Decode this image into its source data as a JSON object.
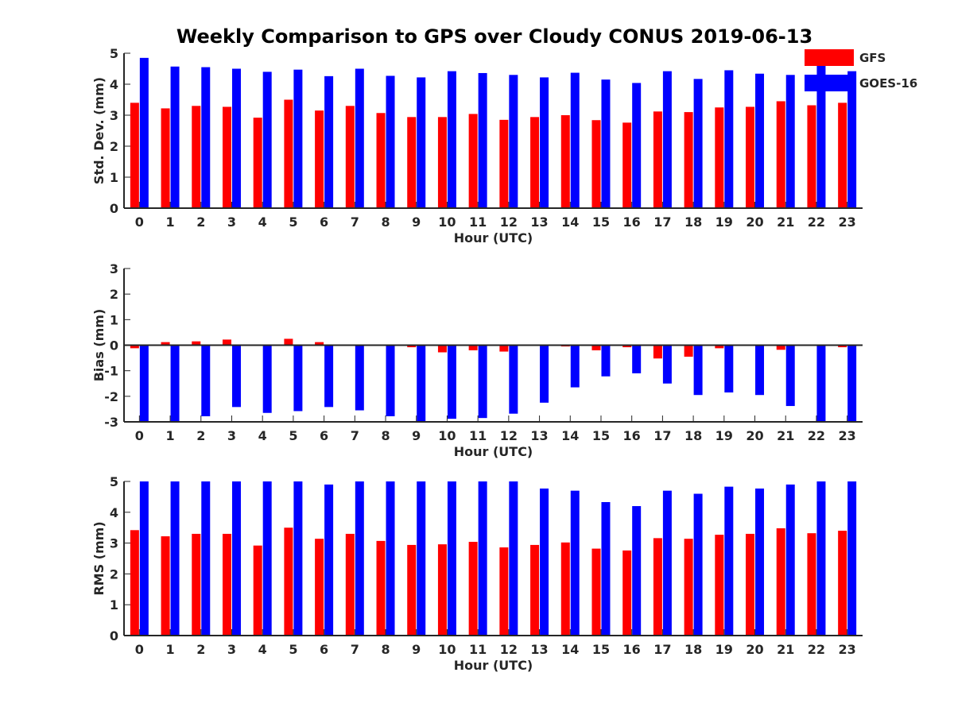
{
  "title": "Weekly Comparison to GPS over Cloudy CONUS 2019-06-13",
  "colors": {
    "GFS": "#ff0000",
    "GOES-16": "#0000ff"
  },
  "legend": {
    "placement": "top-right",
    "items": [
      "GFS",
      "GOES-16"
    ]
  },
  "chart_data": [
    {
      "type": "bar",
      "ylabel": "Std. Dev. (mm)",
      "xlabel": "Hour (UTC)",
      "ylim": [
        0,
        5
      ],
      "yticks": [
        0,
        1,
        2,
        3,
        4,
        5
      ],
      "categories": [
        "0",
        "1",
        "2",
        "3",
        "4",
        "5",
        "6",
        "7",
        "8",
        "9",
        "10",
        "11",
        "12",
        "13",
        "14",
        "15",
        "16",
        "17",
        "18",
        "19",
        "20",
        "21",
        "22",
        "23"
      ],
      "series": [
        {
          "name": "GFS",
          "values": [
            3.4,
            3.22,
            3.3,
            3.27,
            2.92,
            3.5,
            3.15,
            3.3,
            3.07,
            2.94,
            2.94,
            3.04,
            2.85,
            2.94,
            3.0,
            2.84,
            2.76,
            3.12,
            3.1,
            3.25,
            3.27,
            3.45,
            3.32,
            3.4
          ]
        },
        {
          "name": "GOES-16",
          "values": [
            4.85,
            4.57,
            4.55,
            4.5,
            4.4,
            4.47,
            4.26,
            4.5,
            4.27,
            4.22,
            4.42,
            4.36,
            4.3,
            4.22,
            4.37,
            4.15,
            4.04,
            4.42,
            4.17,
            4.45,
            4.34,
            4.3,
            4.62,
            4.42
          ]
        }
      ]
    },
    {
      "type": "bar",
      "ylabel": "Bias (mm)",
      "xlabel": "Hour (UTC)",
      "ylim": [
        -3,
        3
      ],
      "yticks": [
        -3,
        -2,
        -1,
        0,
        1,
        2,
        3
      ],
      "categories": [
        "0",
        "1",
        "2",
        "3",
        "4",
        "5",
        "6",
        "7",
        "8",
        "9",
        "10",
        "11",
        "12",
        "13",
        "14",
        "15",
        "16",
        "17",
        "18",
        "19",
        "20",
        "21",
        "22",
        "23"
      ],
      "series": [
        {
          "name": "GFS",
          "values": [
            -0.12,
            0.12,
            0.15,
            0.22,
            -0.02,
            0.25,
            0.12,
            0.02,
            -0.02,
            -0.08,
            -0.28,
            -0.2,
            -0.25,
            -0.02,
            -0.05,
            -0.2,
            -0.08,
            -0.52,
            -0.45,
            -0.12,
            -0.02,
            -0.18,
            -0.02,
            -0.08
          ]
        },
        {
          "name": "GOES-16",
          "values": [
            -3.0,
            -3.0,
            -2.78,
            -2.42,
            -2.65,
            -2.58,
            -2.42,
            -2.55,
            -2.78,
            -3.0,
            -2.88,
            -2.85,
            -2.68,
            -2.25,
            -1.65,
            -1.22,
            -1.1,
            -1.5,
            -1.95,
            -1.85,
            -1.95,
            -2.38,
            -2.98,
            -3.0
          ]
        }
      ]
    },
    {
      "type": "bar",
      "ylabel": "RMS (mm)",
      "xlabel": "Hour (UTC)",
      "ylim": [
        0,
        5
      ],
      "yticks": [
        0,
        1,
        2,
        3,
        4,
        5
      ],
      "categories": [
        "0",
        "1",
        "2",
        "3",
        "4",
        "5",
        "6",
        "7",
        "8",
        "9",
        "10",
        "11",
        "12",
        "13",
        "14",
        "15",
        "16",
        "17",
        "18",
        "19",
        "20",
        "21",
        "22",
        "23"
      ],
      "series": [
        {
          "name": "GFS",
          "values": [
            3.42,
            3.22,
            3.3,
            3.3,
            2.92,
            3.5,
            3.14,
            3.3,
            3.07,
            2.94,
            2.96,
            3.04,
            2.86,
            2.94,
            3.02,
            2.82,
            2.76,
            3.16,
            3.14,
            3.27,
            3.3,
            3.48,
            3.32,
            3.4
          ]
        },
        {
          "name": "GOES-16",
          "values": [
            5.0,
            5.0,
            5.0,
            5.0,
            5.0,
            5.0,
            4.9,
            5.0,
            5.0,
            5.0,
            5.0,
            5.0,
            5.0,
            4.77,
            4.7,
            4.33,
            4.2,
            4.7,
            4.6,
            4.83,
            4.77,
            4.9,
            5.0,
            5.0
          ]
        }
      ]
    }
  ]
}
